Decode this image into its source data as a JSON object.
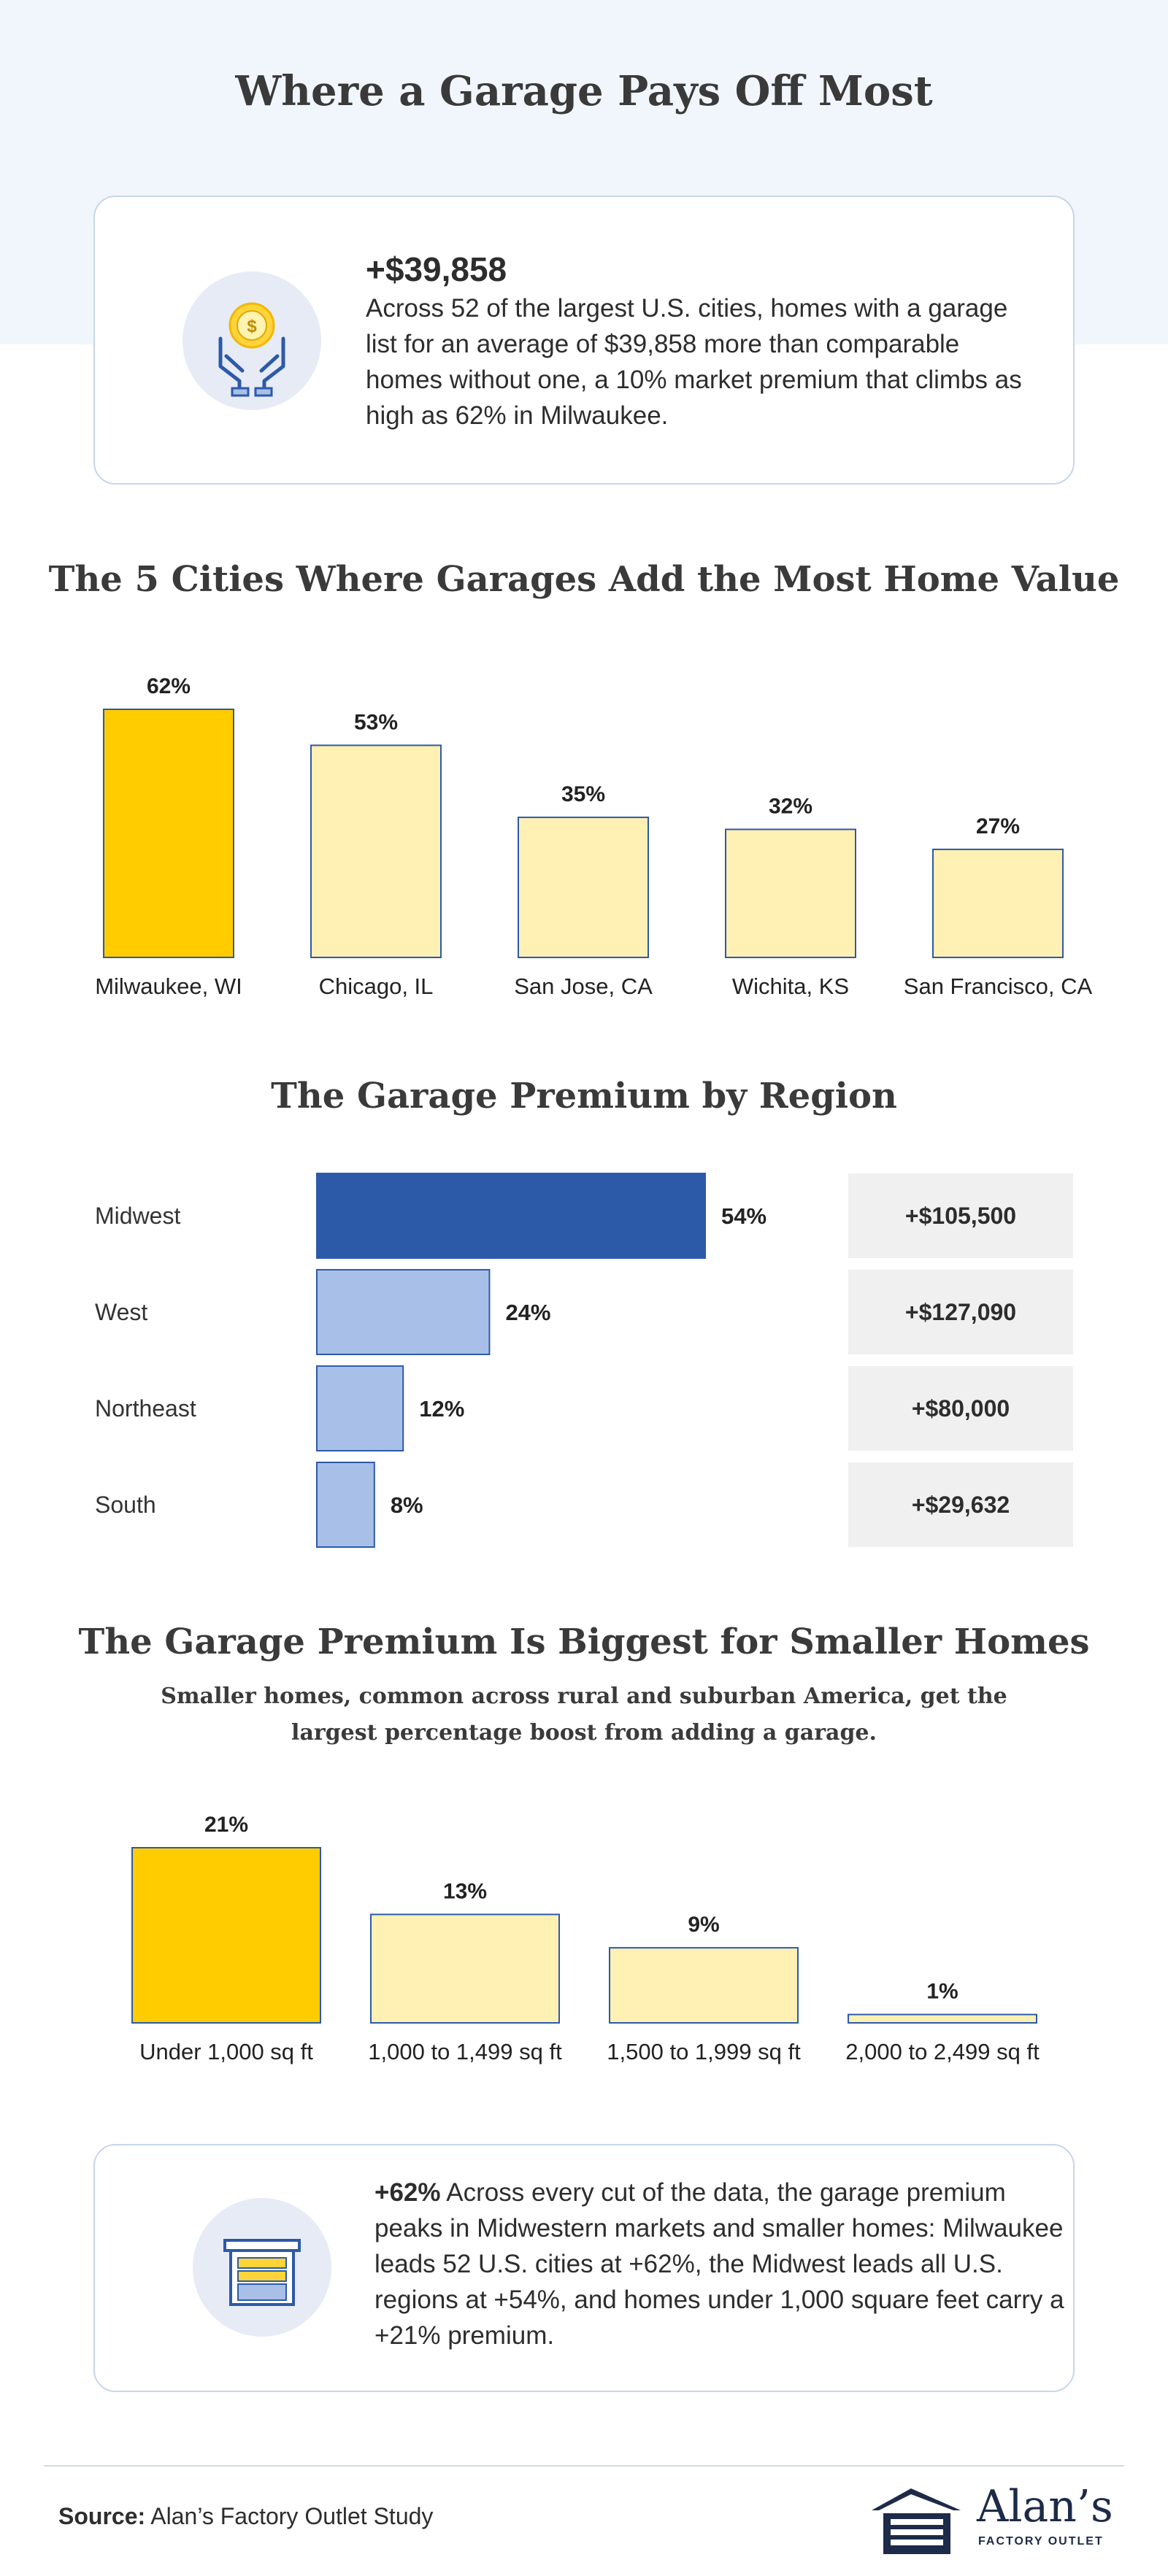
{
  "header": {
    "title": "Where a Garage Pays Off Most"
  },
  "highlight": {
    "value": "+$39,858",
    "text": "Across 52 of the largest U.S. cities, homes with a garage list for an average of $39,858 more than comparable homes without one, a 10% market premium that climbs as high as 62% in Milwaukee.",
    "icon": "hands-coin-icon"
  },
  "sections": {
    "cities_title": "The 5 Cities Where Garages Add the Most Home Value",
    "region_title": "The Garage Premium by Region",
    "size_title": "The Garage Premium Is Biggest for Smaller Homes",
    "size_subtitle": "Smaller homes, common across rural and suburban America, get the largest percentage boost from adding a garage."
  },
  "colors": {
    "gold": "#ffcc00",
    "pale_gold": "#fff0b3",
    "navy_outline": "#2d5aa8",
    "blue_dark": "#2d5aa8",
    "blue_light": "#a8c0e8"
  },
  "chart_data": [
    {
      "type": "bar",
      "title": "The 5 Cities Where Garages Add the Most Home Value",
      "categories": [
        "Milwaukee, WI",
        "Chicago, IL",
        "San Jose, CA",
        "Wichita, KS",
        "San Francisco, CA"
      ],
      "values": [
        62,
        53,
        35,
        32,
        27
      ],
      "labels": [
        "62%",
        "53%",
        "35%",
        "32%",
        "27%"
      ],
      "unit": "%",
      "ylim": [
        0,
        62
      ],
      "highlight_index": 0
    },
    {
      "type": "bar",
      "orientation": "horizontal",
      "title": "The Garage Premium by Region",
      "categories": [
        "Midwest",
        "West",
        "Northeast",
        "South"
      ],
      "values": [
        54,
        24,
        12,
        8
      ],
      "labels": [
        "54%",
        "24%",
        "12%",
        "8%"
      ],
      "dollar_premiums": [
        "+$105,500",
        "+$127,090",
        "+$80,000",
        "+$29,632"
      ],
      "unit": "%",
      "xlim": [
        0,
        54
      ],
      "highlight_index": 0
    },
    {
      "type": "bar",
      "title": "The Garage Premium Is Biggest for Smaller Homes",
      "categories": [
        "Under 1,000 sq ft",
        "1,000 to 1,499 sq ft",
        "1,500 to 1,999 sq ft",
        "2,000 to 2,499 sq ft"
      ],
      "values": [
        21,
        13,
        9,
        1
      ],
      "labels": [
        "21%",
        "13%",
        "9%",
        "1%"
      ],
      "unit": "%",
      "ylim": [
        0,
        21
      ],
      "highlight_index": 0
    }
  ],
  "summary": {
    "value": "+62%",
    "text": " Across every cut of the data, the garage premium peaks in Midwestern markets and smaller homes: Milwaukee leads 52 U.S. cities at +62%, the Midwest leads all U.S. regions at +54%, and homes under 1,000 square feet carry a +21% premium.",
    "icon": "garage-door-icon"
  },
  "footer": {
    "source_label": "Source:",
    "source_text": " Alan’s Factory Outlet Study",
    "logo_name": "Alan’s",
    "logo_tagline": "FACTORY OUTLET",
    "logo_icon": "garage-logo-icon"
  }
}
